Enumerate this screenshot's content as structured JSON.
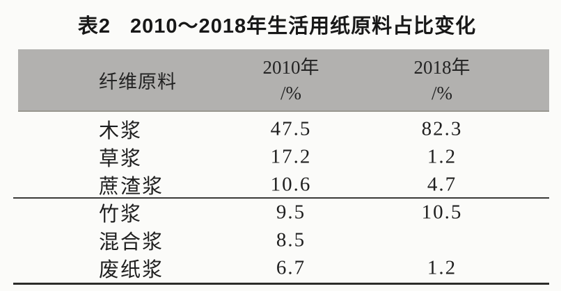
{
  "table": {
    "label": "表2",
    "title": "2010～2018年生活用纸原料占比变化",
    "header": {
      "col_material": "纤维原料",
      "col_2010_year": "2010年",
      "col_2010_unit": "/%",
      "col_2018_year": "2018年",
      "col_2018_unit": "/%",
      "background_color": "#b2b1af"
    },
    "rows": [
      {
        "material": "木浆",
        "pct_2010": "47.5",
        "pct_2018": "82.3"
      },
      {
        "material": "草浆",
        "pct_2010": "17.2",
        "pct_2018": "1.2"
      },
      {
        "material": "蔗渣浆",
        "pct_2010": "10.6",
        "pct_2018": "4.7"
      },
      {
        "material": "竹浆",
        "pct_2010": "9.5",
        "pct_2018": "10.5"
      },
      {
        "material": "混合浆",
        "pct_2010": "8.5",
        "pct_2018": ""
      },
      {
        "material": "废纸浆",
        "pct_2010": "6.7",
        "pct_2018": "1.2"
      }
    ]
  }
}
